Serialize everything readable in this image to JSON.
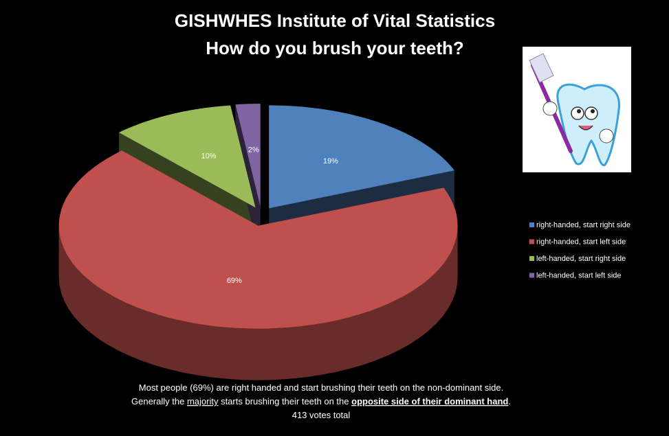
{
  "chart_data": {
    "type": "pie",
    "title": "GISHWHES Institute of Vital Statistics",
    "subtitle": "How do you brush your teeth?",
    "categories": [
      "right-handed, start right side",
      "right-handed, start left side",
      "left-handed, start right side",
      "left-handed, start left side"
    ],
    "values": [
      19,
      69,
      10,
      2
    ],
    "value_labels": [
      "19%",
      "69%",
      "10%",
      "2%"
    ],
    "colors": [
      "#4f81bd",
      "#c0504d",
      "#9bbb59",
      "#8064a2"
    ],
    "legend": "right",
    "footnote": [
      [
        "Most people (69%) are right handed and start brushing their teeth on the non-dominant  side."
      ],
      [
        "Generally the ",
        "majority",
        " starts brushing their teeth on the ",
        "opposite side of their dominant hand",
        "."
      ],
      [
        "413 votes total"
      ]
    ]
  }
}
